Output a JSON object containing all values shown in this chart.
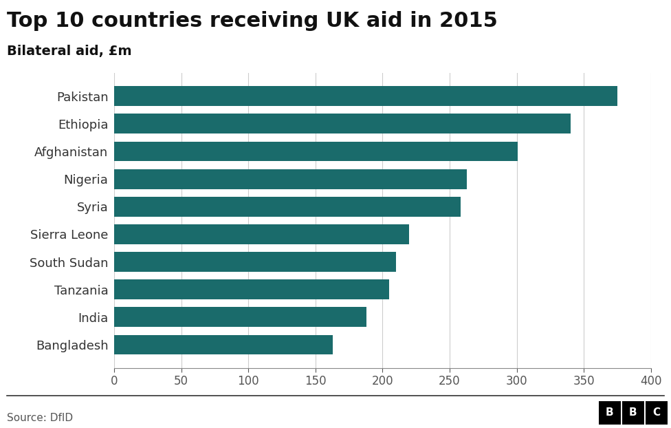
{
  "title": "Top 10 countries receiving UK aid in 2015",
  "subtitle": "Bilateral aid, £m",
  "source": "Source: DfID",
  "bar_color": "#1a6b6b",
  "background_color": "#ffffff",
  "plot_bg_color": "#ffffff",
  "categories": [
    "Bangladesh",
    "India",
    "Tanzania",
    "South Sudan",
    "Sierra Leone",
    "Syria",
    "Nigeria",
    "Afghanistan",
    "Ethiopia",
    "Pakistan"
  ],
  "values": [
    163,
    188,
    205,
    210,
    220,
    258,
    263,
    301,
    340,
    375
  ],
  "xlim": [
    0,
    400
  ],
  "xticks": [
    0,
    50,
    100,
    150,
    200,
    250,
    300,
    350,
    400
  ],
  "title_fontsize": 22,
  "subtitle_fontsize": 14,
  "tick_fontsize": 12,
  "label_fontsize": 13,
  "source_fontsize": 11,
  "bar_height": 0.72
}
